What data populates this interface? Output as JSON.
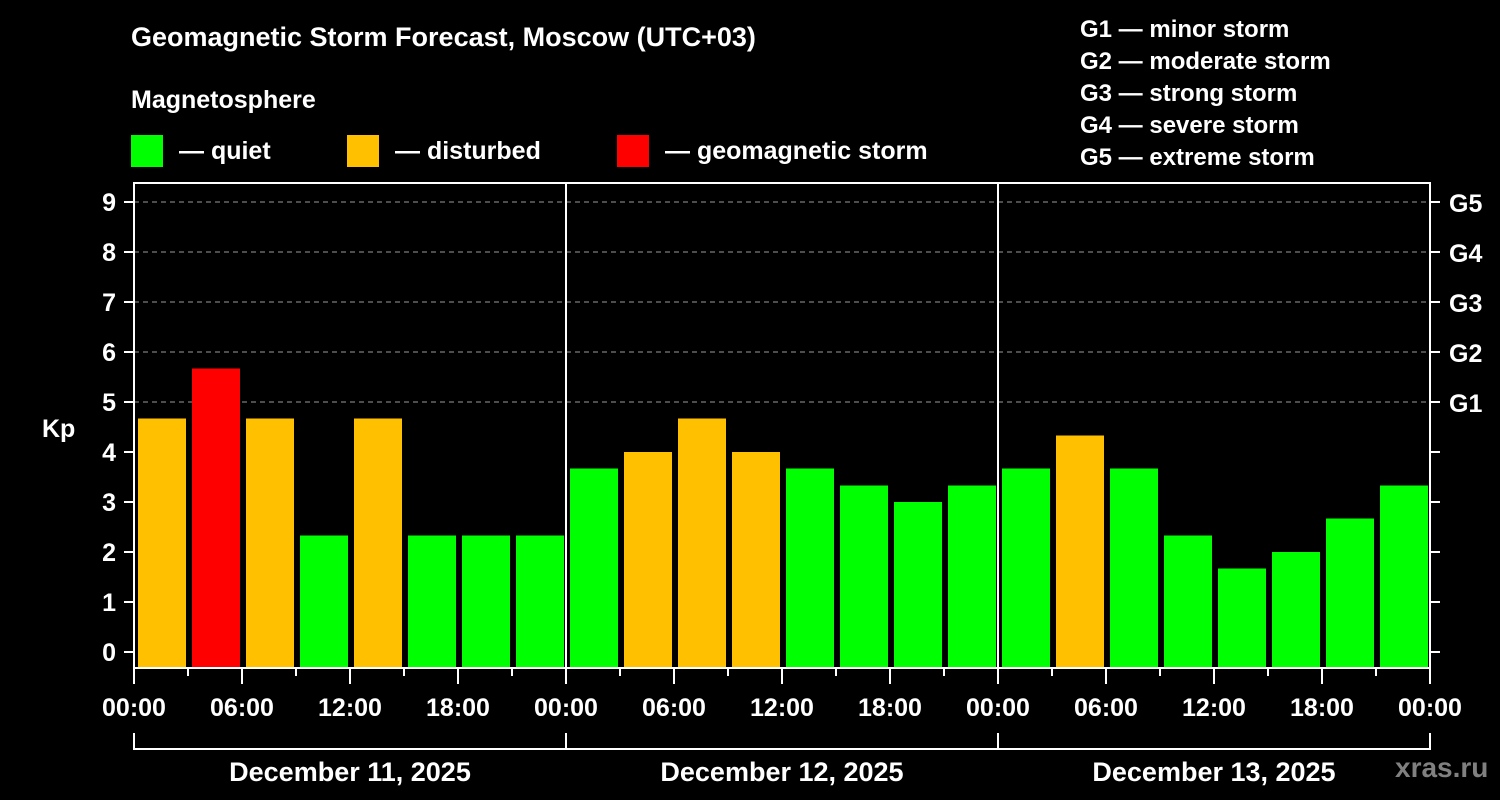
{
  "header": {
    "title": "Geomagnetic Storm Forecast, Moscow (UTC+03)",
    "subtitle": "Magnetosphere"
  },
  "legend": [
    {
      "label": "— quiet",
      "color": "#00ff00"
    },
    {
      "label": "— disturbed",
      "color": "#ffc000"
    },
    {
      "label": "— geomagnetic storm",
      "color": "#ff0000"
    }
  ],
  "g_scale_legend": [
    "G1 — minor storm",
    "G2 — moderate storm",
    "G3 — strong storm",
    "G4 — severe storm",
    "G5 — extreme storm"
  ],
  "watermark": "xras.ru",
  "colors": {
    "quiet": "#00ff00",
    "disturbed": "#ffc000",
    "storm": "#ff0000",
    "axis": "#ffffff",
    "grid": "#9a9a9a",
    "background": "#000000"
  },
  "chart_data": {
    "type": "bar",
    "title": "Geomagnetic Storm Forecast, Moscow (UTC+03)",
    "xlabel": "",
    "ylabel": "Kp",
    "ylim": [
      0,
      9
    ],
    "yticks": [
      0,
      1,
      2,
      3,
      4,
      5,
      6,
      7,
      8,
      9
    ],
    "right_axis_ticks": [
      {
        "kp": 5,
        "label": "G1"
      },
      {
        "kp": 6,
        "label": "G2"
      },
      {
        "kp": 7,
        "label": "G3"
      },
      {
        "kp": 8,
        "label": "G4"
      },
      {
        "kp": 9,
        "label": "G5"
      }
    ],
    "grid": "dashed horizontal at Kp 5-9",
    "interval_hours": 3,
    "xtick_labels": [
      "00:00",
      "06:00",
      "12:00",
      "18:00",
      "00:00",
      "06:00",
      "12:00",
      "18:00",
      "00:00",
      "06:00",
      "12:00",
      "18:00",
      "00:00"
    ],
    "days": [
      "December 11, 2025",
      "December 12, 2025",
      "December 13, 2025"
    ],
    "categories": [
      "Dec 11 00-03",
      "Dec 11 03-06",
      "Dec 11 06-09",
      "Dec 11 09-12",
      "Dec 11 12-15",
      "Dec 11 15-18",
      "Dec 11 18-21",
      "Dec 11 21-24",
      "Dec 12 00-03",
      "Dec 12 03-06",
      "Dec 12 06-09",
      "Dec 12 09-12",
      "Dec 12 12-15",
      "Dec 12 15-18",
      "Dec 12 18-21",
      "Dec 12 21-24",
      "Dec 13 00-03",
      "Dec 13 03-06",
      "Dec 13 06-09",
      "Dec 13 09-12",
      "Dec 13 12-15",
      "Dec 13 15-18",
      "Dec 13 18-21",
      "Dec 13 21-24"
    ],
    "values": [
      4.67,
      5.67,
      4.67,
      2.33,
      4.67,
      2.33,
      2.33,
      2.33,
      3.67,
      4.0,
      4.67,
      4.0,
      3.67,
      3.33,
      3.0,
      3.33,
      3.67,
      4.33,
      3.67,
      2.33,
      1.67,
      2.0,
      2.67,
      3.33
    ],
    "status": [
      "disturbed",
      "storm",
      "disturbed",
      "quiet",
      "disturbed",
      "quiet",
      "quiet",
      "quiet",
      "quiet",
      "disturbed",
      "disturbed",
      "disturbed",
      "quiet",
      "quiet",
      "quiet",
      "quiet",
      "quiet",
      "disturbed",
      "quiet",
      "quiet",
      "quiet",
      "quiet",
      "quiet",
      "quiet"
    ]
  }
}
